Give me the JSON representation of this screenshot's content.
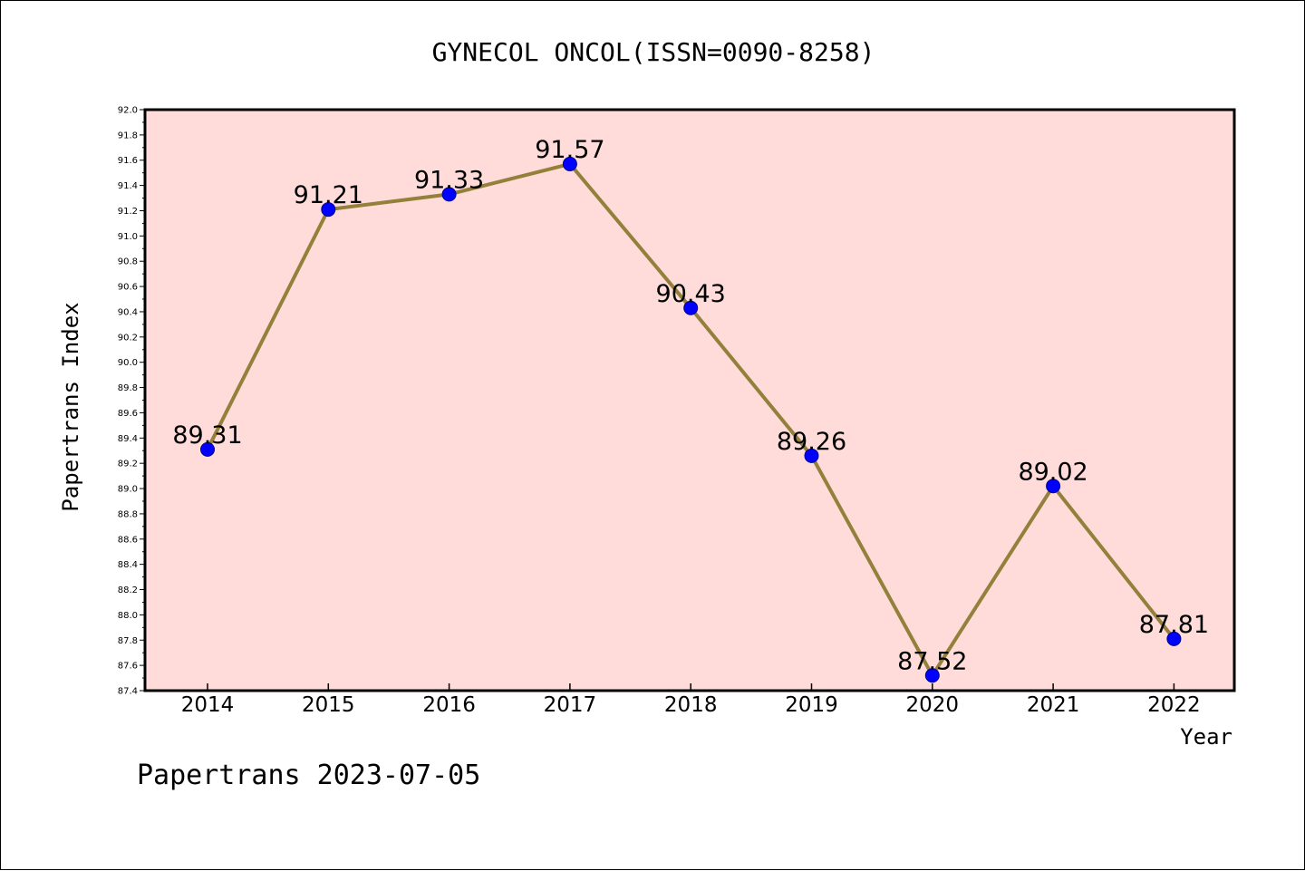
{
  "chart_data": {
    "type": "line",
    "title": "GYNECOL ONCOL(ISSN=0090-8258)",
    "xlabel": "Year",
    "ylabel": "Papertrans Index",
    "categories": [
      "2014",
      "2015",
      "2016",
      "2017",
      "2018",
      "2019",
      "2020",
      "2021",
      "2022"
    ],
    "series": [
      {
        "values": [
          89.31,
          91.21,
          91.33,
          91.57,
          90.43,
          89.26,
          87.52,
          89.02,
          87.81
        ],
        "data_labels": [
          "89.31",
          "91.21",
          "91.33",
          "91.57",
          "90.43",
          "89.26",
          "87.52",
          "89.02",
          "87.81"
        ]
      }
    ],
    "ylim": [
      87.4,
      92.0
    ],
    "y_ticks": [
      "87.4",
      "87.6",
      "87.8",
      "88.0",
      "88.2",
      "88.4",
      "88.6",
      "88.8",
      "89.0",
      "89.2",
      "89.4",
      "89.6",
      "89.8",
      "90.0",
      "90.2",
      "90.4",
      "90.6",
      "90.8",
      "91.0",
      "91.2",
      "91.4",
      "91.6",
      "91.8",
      "92.0"
    ],
    "grid": false,
    "legend": "none",
    "footer": "Papertrans 2023-07-05",
    "colors": {
      "plot_background": "#FFDCDA",
      "line": "#93803A",
      "marker": "#0000FF",
      "marker_edge": "#00008B",
      "frame": "#000000"
    }
  }
}
